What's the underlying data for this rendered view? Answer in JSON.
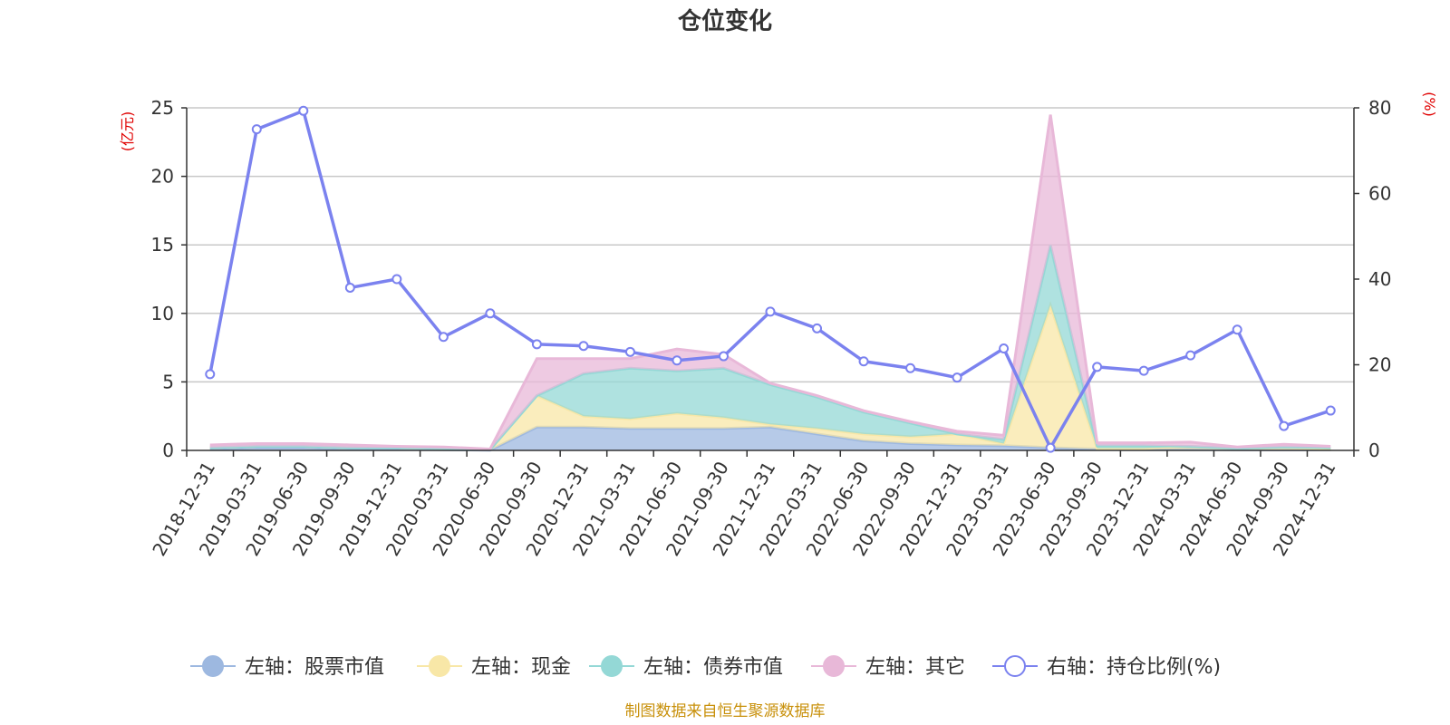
{
  "chart_data": {
    "type": "area",
    "title": "仓位变化",
    "left_axis_unit": "(亿元)",
    "right_axis_unit": "(%)",
    "left_ylim": [
      0,
      25
    ],
    "left_ticks": [
      0,
      5,
      10,
      15,
      20,
      25
    ],
    "right_ylim": [
      0,
      80
    ],
    "right_ticks": [
      0,
      20,
      40,
      60,
      80
    ],
    "categories": [
      "2018-12-31",
      "2019-03-31",
      "2019-06-30",
      "2019-09-30",
      "2019-12-31",
      "2020-03-31",
      "2020-06-30",
      "2020-09-30",
      "2020-12-31",
      "2021-03-31",
      "2021-06-30",
      "2021-09-30",
      "2021-12-31",
      "2022-03-31",
      "2022-06-30",
      "2022-09-30",
      "2022-12-31",
      "2023-03-31",
      "2023-06-30",
      "2023-09-30",
      "2023-12-31",
      "2024-03-31",
      "2024-06-30",
      "2024-09-30",
      "2024-12-31"
    ],
    "stacked_series": [
      {
        "name": "左轴：股票市值",
        "color": "#9db8e0",
        "values": [
          0.1,
          0.2,
          0.2,
          0.1,
          0.1,
          0.05,
          0.02,
          1.7,
          1.7,
          1.6,
          1.6,
          1.6,
          1.7,
          1.2,
          0.7,
          0.5,
          0.4,
          0.35,
          0.2,
          0.1,
          0.1,
          0.1,
          0.05,
          0.05,
          0.05
        ]
      },
      {
        "name": "左轴：现金",
        "color": "#f8e7a7",
        "values": [
          0.1,
          0.1,
          0.1,
          0.1,
          0.1,
          0.1,
          0.05,
          2.3,
          0.8,
          0.7,
          1.1,
          0.8,
          0.2,
          0.4,
          0.5,
          0.5,
          0.8,
          0.15,
          10.4,
          0.05,
          0.05,
          0.2,
          0.1,
          0.2,
          0.05
        ]
      },
      {
        "name": "左轴：债券市值",
        "color": "#94d8d6",
        "values": [
          0,
          0,
          0,
          0,
          0,
          0,
          0,
          0,
          3.1,
          3.7,
          3.1,
          3.6,
          2.9,
          2.3,
          1.6,
          1.0,
          0,
          0.3,
          4.4,
          0.2,
          0.2,
          0,
          0,
          0,
          0.1
        ]
      },
      {
        "name": "左轴：其它",
        "color": "#e8b8d8",
        "values": [
          0.2,
          0.2,
          0.2,
          0.2,
          0.1,
          0.1,
          0.03,
          2.7,
          1.1,
          0.7,
          1.6,
          1.0,
          0.1,
          0.1,
          0.1,
          0.1,
          0.2,
          0.3,
          9.5,
          0.2,
          0.2,
          0.3,
          0.1,
          0.2,
          0.1
        ]
      }
    ],
    "line_series": {
      "name": "右轴：持仓比例(%)",
      "color": "#7b82ef",
      "values": [
        17.8,
        75.0,
        79.3,
        38.0,
        40.0,
        26.5,
        32.0,
        24.8,
        24.4,
        23.0,
        21.0,
        22.0,
        32.4,
        28.5,
        20.8,
        19.2,
        17.0,
        23.8,
        0.6,
        19.5,
        18.6,
        22.2,
        28.2,
        5.7,
        9.3
      ]
    },
    "legend": [
      "左轴：股票市值",
      "左轴：现金",
      "左轴：债券市值",
      "左轴：其它",
      "右轴：持仓比例(%)"
    ],
    "source": "制图数据来自恒生聚源数据库"
  }
}
